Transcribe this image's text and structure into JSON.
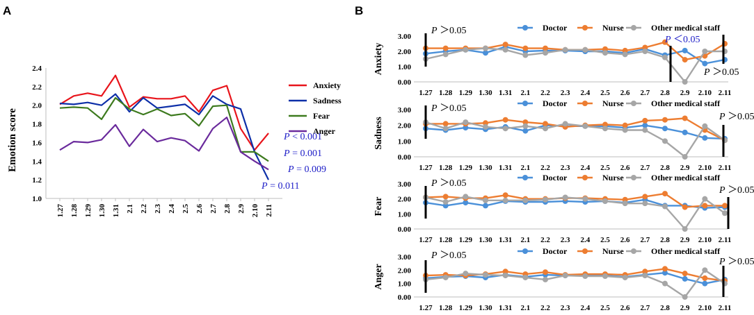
{
  "figure": {
    "label_a": "A",
    "label_b": "B"
  },
  "chart_data": [
    {
      "type": "line",
      "panel": "A",
      "title": "",
      "ylabel": "Emotion score",
      "xlabel": "",
      "categories": [
        "1.27",
        "1.28",
        "1.29",
        "1.30",
        "1.31",
        "2.1",
        "2.2",
        "2.3",
        "2.4",
        "2.5",
        "2.6",
        "2.7",
        "2.8",
        "2.9",
        "2.10",
        "2.11"
      ],
      "ylim": [
        1.0,
        2.4
      ],
      "yticks": [
        "1.0",
        "1.2",
        "1.4",
        "1.6",
        "1.8",
        "2.0",
        "2.2",
        "2.4"
      ],
      "legend_position": "right",
      "series": [
        {
          "name": "Anxiety",
          "color": "#e8141b",
          "values": [
            2.01,
            2.1,
            2.13,
            2.1,
            2.32,
            1.98,
            2.09,
            2.07,
            2.07,
            2.1,
            1.93,
            2.16,
            2.21,
            1.75,
            1.52,
            1.7
          ]
        },
        {
          "name": "Sadness",
          "color": "#0d2fa8",
          "values": [
            2.02,
            2.01,
            2.03,
            2.0,
            2.12,
            1.93,
            2.08,
            1.97,
            1.99,
            2.01,
            1.9,
            2.1,
            2.01,
            1.96,
            1.5,
            1.2
          ]
        },
        {
          "name": "Fear",
          "color": "#3d7a1e",
          "values": [
            1.97,
            1.98,
            1.97,
            1.85,
            2.08,
            1.96,
            1.9,
            1.96,
            1.89,
            1.91,
            1.78,
            1.99,
            2.0,
            1.5,
            1.5,
            1.4
          ]
        },
        {
          "name": "Anger",
          "color": "#6a2a9c",
          "values": [
            1.52,
            1.61,
            1.6,
            1.63,
            1.79,
            1.56,
            1.74,
            1.61,
            1.65,
            1.62,
            1.51,
            1.75,
            1.87,
            1.5,
            1.4,
            1.31
          ]
        }
      ],
      "annotations": [
        {
          "prefix": "P",
          "op": "< ",
          "value": "0.001",
          "series": "Anxiety"
        },
        {
          "prefix": "P",
          "op": "= ",
          "value": "0.001",
          "series": "Fear"
        },
        {
          "prefix": "P",
          "op": "= ",
          "value": "0.009",
          "series": "Sadness"
        },
        {
          "prefix": "P",
          "op": "= ",
          "value": "0.011",
          "series": "Anger"
        }
      ]
    },
    {
      "type": "line",
      "panel": "B",
      "ylabel": "Anxiety",
      "categories": [
        "1.27",
        "1.28",
        "1.29",
        "1.30",
        "1.31",
        "2.1",
        "2.2",
        "2.3",
        "2.4",
        "2.5",
        "2.6",
        "2.7",
        "2.8",
        "2.9",
        "2.10",
        "2.11"
      ],
      "ylim": [
        0.0,
        3.0
      ],
      "yticks": [
        "0.00",
        "1.00",
        "2.00",
        "3.00"
      ],
      "legend": [
        "Doctor",
        "Nurse",
        "Other medical staff"
      ],
      "legend_position": "top",
      "series": [
        {
          "name": "Doctor",
          "color": "#4a90d9",
          "values": [
            1.85,
            2.0,
            2.1,
            1.9,
            2.3,
            2.0,
            2.05,
            2.05,
            2.0,
            2.0,
            1.9,
            2.15,
            1.75,
            2.05,
            1.2,
            1.45
          ]
        },
        {
          "name": "Nurse",
          "color": "#ed7d31",
          "values": [
            2.2,
            2.2,
            2.2,
            2.2,
            2.45,
            2.2,
            2.2,
            2.1,
            2.1,
            2.15,
            2.05,
            2.25,
            2.6,
            1.45,
            1.7,
            2.5
          ]
        },
        {
          "name": "Other medical staff",
          "color": "#a6a6a6",
          "values": [
            1.5,
            1.8,
            2.1,
            2.2,
            2.1,
            1.75,
            1.9,
            2.1,
            2.1,
            1.9,
            1.8,
            2.0,
            1.6,
            0.0,
            2.0,
            2.0
          ]
        }
      ],
      "annotations": [
        {
          "text": "P＞0.05",
          "color": "#000000"
        },
        {
          "text": "P＜0.05",
          "color": "#2020c8"
        },
        {
          "text": "P＞0.05",
          "color": "#000000"
        }
      ]
    },
    {
      "type": "line",
      "panel": "B",
      "ylabel": "Sadness",
      "categories": [
        "1.27",
        "1.28",
        "1.29",
        "1.30",
        "1.31",
        "2.1",
        "2.2",
        "2.3",
        "2.4",
        "2.5",
        "2.6",
        "2.7",
        "2.8",
        "2.9",
        "2.10",
        "2.11"
      ],
      "ylim": [
        0.0,
        3.0
      ],
      "yticks": [
        "0.00",
        "1.00",
        "2.00",
        "3.00"
      ],
      "legend": [
        "Doctor",
        "Nurse",
        "Other medical staff"
      ],
      "legend_position": "top",
      "series": [
        {
          "name": "Doctor",
          "color": "#4a90d9",
          "values": [
            1.8,
            1.7,
            1.85,
            1.75,
            1.9,
            1.65,
            2.0,
            1.95,
            1.95,
            1.95,
            1.85,
            2.0,
            1.8,
            1.55,
            1.2,
            1.15
          ]
        },
        {
          "name": "Nurse",
          "color": "#ed7d31",
          "values": [
            2.1,
            2.1,
            2.1,
            2.15,
            2.35,
            2.2,
            2.1,
            1.9,
            2.0,
            2.05,
            2.0,
            2.3,
            2.35,
            2.45,
            1.7,
            1.05
          ]
        },
        {
          "name": "Other medical staff",
          "color": "#a6a6a6",
          "values": [
            2.2,
            1.8,
            2.2,
            1.9,
            1.8,
            1.95,
            1.8,
            2.1,
            1.95,
            1.8,
            1.7,
            1.7,
            1.0,
            0.0,
            1.95,
            1.05
          ]
        }
      ],
      "annotations": [
        {
          "text": "P＞0.05",
          "color": "#000000"
        },
        {
          "text": "P＞0.05",
          "color": "#000000"
        }
      ]
    },
    {
      "type": "line",
      "panel": "B",
      "ylabel": "Fear",
      "categories": [
        "1.27",
        "1.28",
        "1.29",
        "1.30",
        "1.31",
        "2.1",
        "2.2",
        "2.3",
        "2.4",
        "2.5",
        "2.6",
        "2.7",
        "2.8",
        "2.9",
        "2.10",
        "2.11"
      ],
      "ylim": [
        0.0,
        3.0
      ],
      "yticks": [
        "0.00",
        "1.00",
        "2.00",
        "3.00"
      ],
      "legend": [
        "Doctor",
        "Nurse",
        "Other medical staff"
      ],
      "legend_position": "top",
      "series": [
        {
          "name": "Doctor",
          "color": "#4a90d9",
          "values": [
            1.75,
            1.55,
            1.75,
            1.55,
            1.85,
            1.8,
            1.8,
            1.85,
            1.8,
            1.85,
            1.75,
            1.95,
            1.55,
            1.55,
            1.4,
            1.45
          ]
        },
        {
          "name": "Nurse",
          "color": "#ed7d31",
          "values": [
            2.1,
            2.15,
            2.05,
            2.05,
            2.25,
            2.0,
            2.0,
            2.05,
            2.05,
            2.0,
            1.95,
            2.15,
            2.35,
            1.45,
            1.55,
            1.55
          ]
        },
        {
          "name": "Other medical staff",
          "color": "#a6a6a6",
          "values": [
            2.1,
            1.8,
            2.15,
            1.9,
            1.9,
            1.9,
            1.95,
            2.1,
            2.0,
            1.85,
            1.7,
            1.7,
            1.5,
            0.0,
            2.0,
            1.05
          ]
        }
      ],
      "annotations": [
        {
          "text": "P＞0.05",
          "color": "#000000"
        },
        {
          "text": "P＞0.05",
          "color": "#000000"
        }
      ]
    },
    {
      "type": "line",
      "panel": "B",
      "ylabel": "Anger",
      "categories": [
        "1.27",
        "1.28",
        "1.29",
        "1.30",
        "1.31",
        "2.1",
        "2.2",
        "2.3",
        "2.4",
        "2.5",
        "2.6",
        "2.7",
        "2.8",
        "2.9",
        "2.10",
        "2.11"
      ],
      "ylim": [
        0.0,
        3.0
      ],
      "yticks": [
        "0.00",
        "1.00",
        "2.00",
        "3.00"
      ],
      "legend": [
        "Doctor",
        "Nurse",
        "Other medical staff"
      ],
      "legend_label_raw": "Other medical staff",
      "legend_position": "top",
      "series": [
        {
          "name": "Doctor",
          "color": "#4a90d9",
          "values": [
            1.4,
            1.5,
            1.55,
            1.45,
            1.65,
            1.5,
            1.65,
            1.6,
            1.6,
            1.6,
            1.5,
            1.65,
            1.8,
            1.35,
            1.0,
            1.3
          ]
        },
        {
          "name": "Nurse",
          "color": "#ed7d31",
          "values": [
            1.6,
            1.65,
            1.6,
            1.7,
            1.9,
            1.7,
            1.85,
            1.65,
            1.7,
            1.7,
            1.65,
            1.9,
            2.1,
            1.75,
            1.4,
            1.2
          ]
        },
        {
          "name": "Other medical staff",
          "color": "#a6a6a6",
          "values": [
            1.3,
            1.45,
            1.75,
            1.65,
            1.6,
            1.45,
            1.3,
            1.6,
            1.55,
            1.55,
            1.45,
            1.6,
            1.0,
            0.0,
            2.0,
            1.0
          ]
        }
      ],
      "annotations": [
        {
          "text": "P＞0.05",
          "color": "#000000"
        },
        {
          "text": "P＞0.05",
          "color": "#000000"
        }
      ]
    }
  ]
}
